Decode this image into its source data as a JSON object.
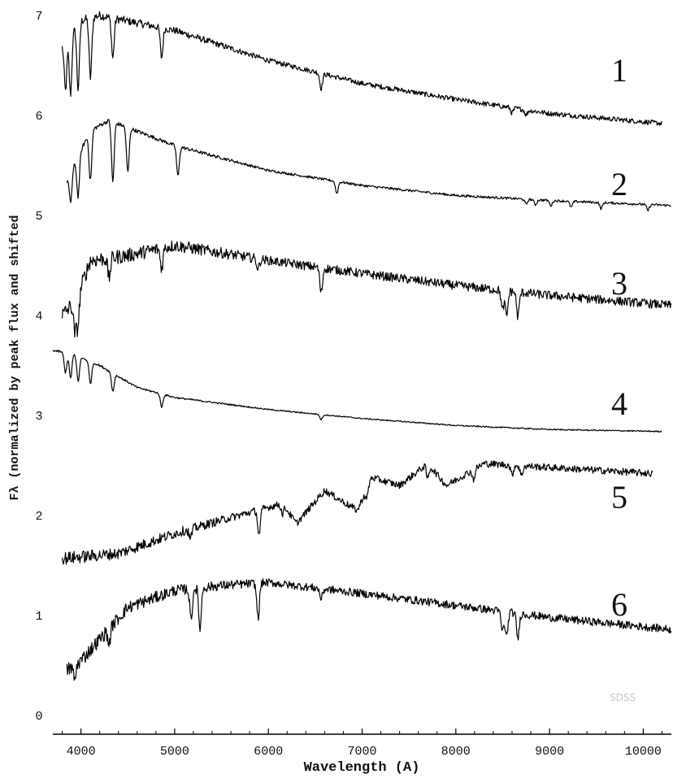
{
  "chart_data": {
    "type": "line",
    "xlabel": "Wavelength (A)",
    "ylabel": "Fλ (normalized by peak flux and shifted",
    "xlim": [
      3700,
      10300
    ],
    "ylim": [
      0,
      7
    ],
    "x_ticks": [
      "4000",
      "5000",
      "6000",
      "7000",
      "8000",
      "9000",
      "10000"
    ],
    "y_ticks": [
      "0",
      "1",
      "2",
      "3",
      "4",
      "5",
      "6",
      "7"
    ],
    "credit": "SDSS",
    "series": [
      {
        "name": "1",
        "continuum": [
          [
            3800,
            6.7
          ],
          [
            4000,
            6.95
          ],
          [
            4200,
            7.0
          ],
          [
            5000,
            6.85
          ],
          [
            6000,
            6.55
          ],
          [
            7000,
            6.32
          ],
          [
            8000,
            6.16
          ],
          [
            9000,
            6.02
          ],
          [
            10200,
            5.92
          ]
        ],
        "lines": [
          [
            3835,
            0.5
          ],
          [
            3889,
            0.6
          ],
          [
            3970,
            0.65
          ],
          [
            4101,
            0.6
          ],
          [
            4340,
            0.4
          ],
          [
            4861,
            0.3
          ],
          [
            6563,
            0.15
          ],
          [
            8600,
            0.05
          ],
          [
            8750,
            0.05
          ]
        ]
      },
      {
        "name": "2",
        "continuum": [
          [
            3850,
            5.35
          ],
          [
            4100,
            5.85
          ],
          [
            4300,
            5.95
          ],
          [
            5000,
            5.7
          ],
          [
            6000,
            5.45
          ],
          [
            7000,
            5.3
          ],
          [
            8000,
            5.2
          ],
          [
            9000,
            5.15
          ],
          [
            10300,
            5.1
          ]
        ],
        "lines": [
          [
            3890,
            0.3
          ],
          [
            3970,
            0.4
          ],
          [
            4101,
            0.5
          ],
          [
            4340,
            0.6
          ],
          [
            4500,
            0.45
          ],
          [
            5035,
            0.3
          ],
          [
            6730,
            0.12
          ],
          [
            8750,
            0.05
          ],
          [
            8850,
            0.05
          ],
          [
            9015,
            0.05
          ],
          [
            9230,
            0.06
          ],
          [
            9550,
            0.06
          ],
          [
            10050,
            0.06
          ]
        ]
      },
      {
        "name": "3",
        "continuum": [
          [
            3800,
            4.0
          ],
          [
            3950,
            4.15
          ],
          [
            4100,
            4.55
          ],
          [
            4500,
            4.6
          ],
          [
            5000,
            4.7
          ],
          [
            6000,
            4.55
          ],
          [
            7000,
            4.42
          ],
          [
            8000,
            4.3
          ],
          [
            9000,
            4.2
          ],
          [
            10300,
            4.1
          ]
        ],
        "lines": [
          [
            3934,
            0.3
          ],
          [
            3968,
            0.3
          ],
          [
            4300,
            0.2
          ],
          [
            4861,
            0.2
          ],
          [
            5890,
            0.1
          ],
          [
            6563,
            0.25
          ],
          [
            8498,
            0.2
          ],
          [
            8542,
            0.25
          ],
          [
            8662,
            0.25
          ]
        ]
      },
      {
        "name": "4",
        "continuum": [
          [
            3700,
            3.65
          ],
          [
            3900,
            3.62
          ],
          [
            4200,
            3.5
          ],
          [
            4600,
            3.28
          ],
          [
            5000,
            3.18
          ],
          [
            6000,
            3.06
          ],
          [
            7000,
            2.97
          ],
          [
            8000,
            2.9
          ],
          [
            9000,
            2.86
          ],
          [
            10200,
            2.84
          ]
        ],
        "lines": [
          [
            3835,
            0.2
          ],
          [
            3889,
            0.25
          ],
          [
            3970,
            0.25
          ],
          [
            4101,
            0.22
          ],
          [
            4340,
            0.18
          ],
          [
            4861,
            0.13
          ],
          [
            6563,
            0.05
          ]
        ]
      },
      {
        "name": "5",
        "continuum": [
          [
            3800,
            1.57
          ],
          [
            4400,
            1.62
          ],
          [
            5000,
            1.82
          ],
          [
            5600,
            1.98
          ],
          [
            6150,
            2.12
          ],
          [
            6300,
            1.92
          ],
          [
            6600,
            2.25
          ],
          [
            6950,
            2.05
          ],
          [
            7100,
            2.38
          ],
          [
            7400,
            2.3
          ],
          [
            7700,
            2.52
          ],
          [
            7900,
            2.3
          ],
          [
            8300,
            2.52
          ],
          [
            9000,
            2.48
          ],
          [
            10100,
            2.42
          ]
        ],
        "lines": [
          [
            5168,
            0.1
          ],
          [
            5900,
            0.25
          ],
          [
            6150,
            0.1
          ],
          [
            7050,
            0.1
          ],
          [
            7700,
            0.15
          ],
          [
            8190,
            0.1
          ],
          [
            8600,
            0.1
          ],
          [
            8700,
            0.1
          ]
        ]
      },
      {
        "name": "6",
        "continuum": [
          [
            3850,
            0.45
          ],
          [
            4000,
            0.55
          ],
          [
            4500,
            1.08
          ],
          [
            5000,
            1.25
          ],
          [
            5500,
            1.3
          ],
          [
            6000,
            1.33
          ],
          [
            7000,
            1.22
          ],
          [
            8000,
            1.1
          ],
          [
            9000,
            0.98
          ],
          [
            10300,
            0.86
          ]
        ],
        "lines": [
          [
            3934,
            0.15
          ],
          [
            4300,
            0.15
          ],
          [
            5175,
            0.3
          ],
          [
            5270,
            0.4
          ],
          [
            5890,
            0.35
          ],
          [
            6563,
            0.1
          ],
          [
            8498,
            0.2
          ],
          [
            8542,
            0.25
          ],
          [
            8662,
            0.25
          ]
        ]
      }
    ]
  }
}
